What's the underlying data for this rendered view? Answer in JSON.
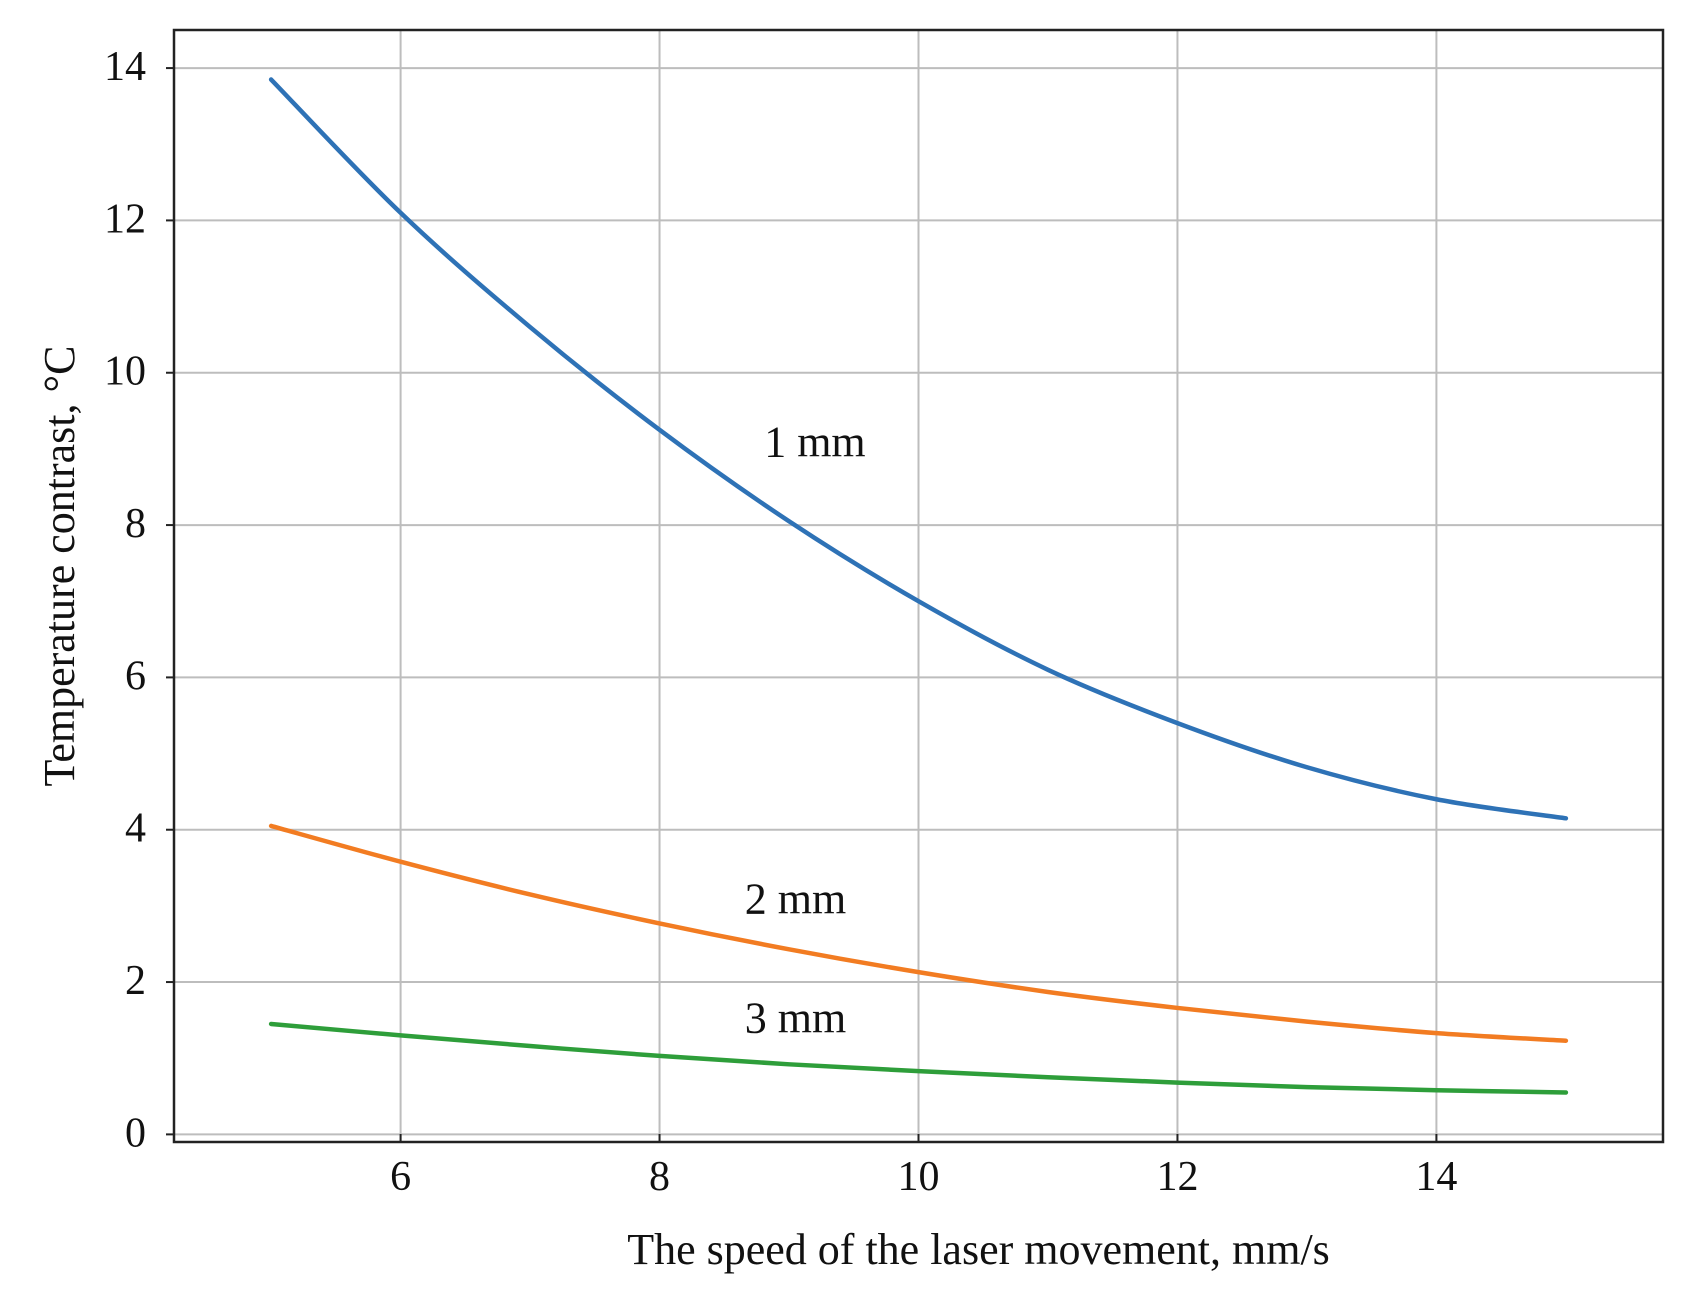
{
  "chart_data": {
    "type": "line",
    "title": "",
    "xlabel": "The speed of the laser movement, mm/s",
    "ylabel": "Temperature contrast, °C",
    "xlim": [
      4.25,
      15.75
    ],
    "ylim": [
      -0.1,
      14.5
    ],
    "xticks": [
      6,
      8,
      10,
      12,
      14
    ],
    "yticks": [
      0,
      2,
      4,
      6,
      8,
      10,
      12,
      14
    ],
    "grid": true,
    "legend": "none",
    "series": [
      {
        "name": "1 mm",
        "color": "#2e72b6",
        "label_at": [
          9.2,
          8.9
        ],
        "x": [
          5,
          6,
          7,
          8,
          9,
          10,
          11,
          12,
          13,
          14,
          15
        ],
        "y": [
          13.85,
          12.1,
          10.6,
          9.25,
          8.05,
          7.0,
          6.1,
          5.4,
          4.82,
          4.4,
          4.15
        ]
      },
      {
        "name": "2 mm",
        "color": "#f27c22",
        "label_at": [
          9.05,
          2.9
        ],
        "x": [
          5,
          6,
          7,
          8,
          9,
          10,
          11,
          12,
          13,
          14,
          15
        ],
        "y": [
          4.05,
          3.58,
          3.15,
          2.77,
          2.43,
          2.13,
          1.87,
          1.66,
          1.48,
          1.33,
          1.23
        ]
      },
      {
        "name": "3 mm",
        "color": "#2e9e3a",
        "label_at": [
          9.05,
          1.34
        ],
        "x": [
          5,
          6,
          7,
          8,
          9,
          10,
          11,
          12,
          13,
          14,
          15
        ],
        "y": [
          1.45,
          1.3,
          1.16,
          1.03,
          0.92,
          0.83,
          0.75,
          0.68,
          0.62,
          0.58,
          0.55
        ]
      }
    ]
  }
}
